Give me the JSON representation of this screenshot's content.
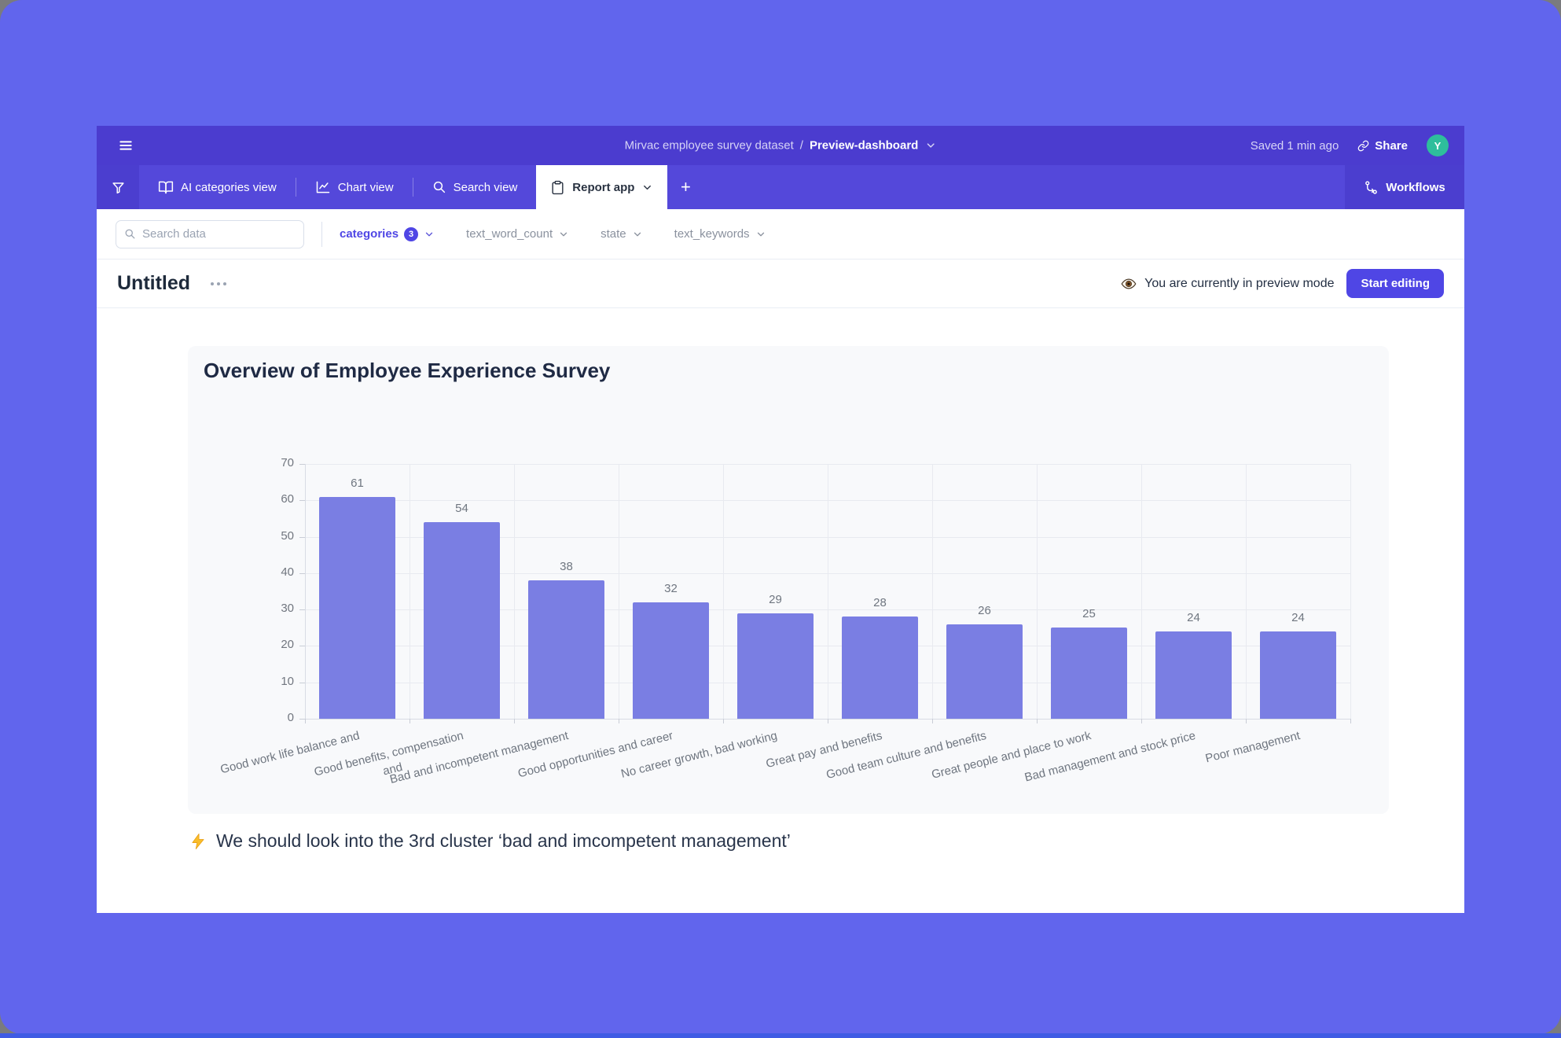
{
  "header": {
    "breadcrumb": {
      "dataset": "Mirvac employee survey dataset",
      "separator": "/",
      "current": "Preview-dashboard"
    },
    "saved_status": "Saved 1 min ago",
    "share_label": "Share",
    "avatar_initial": "Y"
  },
  "tab_bar": {
    "tabs": [
      {
        "label": "AI categories view",
        "icon": "book-icon",
        "active": false
      },
      {
        "label": "Chart view",
        "icon": "chart-icon",
        "active": false
      },
      {
        "label": "Search view",
        "icon": "search-icon",
        "active": false
      },
      {
        "label": "Report app",
        "icon": "clipboard-icon",
        "active": true
      }
    ],
    "add_tab_label": "+",
    "workflows_label": "Workflows"
  },
  "filter_bar": {
    "search_placeholder": "Search data",
    "filters": [
      {
        "label": "categories",
        "badge": "3",
        "active": true
      },
      {
        "label": "text_word_count",
        "badge": "",
        "active": false
      },
      {
        "label": "state",
        "badge": "",
        "active": false
      },
      {
        "label": "text_keywords",
        "badge": "",
        "active": false
      }
    ]
  },
  "toolbar": {
    "page_title": "Untitled",
    "preview_notice": "You are currently in preview mode",
    "start_editing_label": "Start editing"
  },
  "report": {
    "note": "We should look into the 3rd cluster ‘bad and imcompetent management’"
  },
  "chart_data": {
    "type": "bar",
    "title": "Overview of Employee Experience Survey",
    "categories": [
      "Good work life balance and",
      "Good benefits, compensation\nand",
      "Bad and incompetent management",
      "Good opportunities and career",
      "No career growth, bad working",
      "Great pay and benefits",
      "Good team culture and benefits",
      "Great people and place to work",
      "Bad management and stock price",
      "Poor management"
    ],
    "values": [
      61,
      54,
      38,
      32,
      29,
      28,
      26,
      25,
      24,
      24
    ],
    "xlabel": "",
    "ylabel": "",
    "ylim": [
      0,
      70
    ],
    "ytick_step": 10,
    "grid": true,
    "legend": false,
    "bar_color": "#7a7ee3",
    "label_rotation_deg": -14
  },
  "icons": {
    "menu-icon": "hamburger lines",
    "chevron-down-icon": "v chevron",
    "link-icon": "chain link",
    "filter-icon": "funnel",
    "book-icon": "open book",
    "chart-icon": "line chart",
    "search-icon": "magnifier",
    "clipboard-icon": "clipboard",
    "plus-icon": "+",
    "workflows-icon": "branch",
    "ellipsis-icon": "three dots",
    "eye-icon": "eye emoji",
    "lightning-icon": "lightning bolt"
  },
  "colors": {
    "accent": "#4f46e5",
    "header_bg": "#4b3ccf",
    "tabbar_bg": "#5448da",
    "tabdark_bg": "#4b3ecf",
    "outer_bg": "#6165ed",
    "bar_fill": "#7a7ee3",
    "avatar_bg": "#2ebe9c",
    "bottom_strip": "#3f5be4"
  }
}
